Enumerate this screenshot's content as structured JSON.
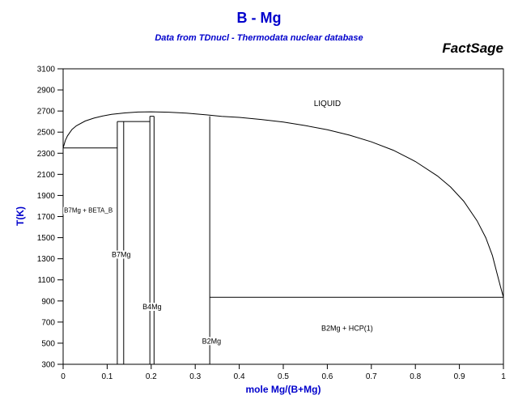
{
  "header": {
    "title": "B - Mg",
    "subtitle": "Data from TDnucl - Thermodata nuclear database",
    "brand": "FactSage"
  },
  "colors": {
    "title_blue": "#0000CC",
    "line_black": "#000000",
    "background": "#FFFFFF"
  },
  "chart_data": {
    "type": "line",
    "title": "B - Mg",
    "subtitle": "Data from TDnucl - Thermodata nuclear database",
    "xlabel": "mole Mg/(B+Mg)",
    "ylabel": "T(K)",
    "xlim": [
      0,
      1
    ],
    "ylim": [
      300,
      3100
    ],
    "grid": false,
    "x_ticks": [
      0,
      0.1,
      0.2,
      0.3,
      0.4,
      0.5,
      0.6,
      0.7,
      0.8,
      0.9,
      1
    ],
    "y_ticks": [
      300,
      500,
      700,
      900,
      1100,
      1300,
      1500,
      1700,
      1900,
      2100,
      2300,
      2500,
      2700,
      2900,
      3100
    ],
    "series": [
      {
        "name": "liquidus",
        "x": [
          0,
          0.005,
          0.01,
          0.02,
          0.03,
          0.05,
          0.07,
          0.09,
          0.11,
          0.14,
          0.17,
          0.2,
          0.24,
          0.28,
          0.32,
          0.36,
          0.4,
          0.45,
          0.5,
          0.55,
          0.6,
          0.65,
          0.7,
          0.75,
          0.8,
          0.85,
          0.88,
          0.91,
          0.94,
          0.96,
          0.975,
          0.985,
          0.993,
          1.0
        ],
        "y": [
          2350,
          2420,
          2465,
          2525,
          2560,
          2605,
          2633,
          2653,
          2668,
          2682,
          2690,
          2693,
          2689,
          2680,
          2666,
          2650,
          2640,
          2620,
          2596,
          2562,
          2522,
          2472,
          2408,
          2328,
          2222,
          2085,
          1980,
          1845,
          1660,
          1500,
          1330,
          1170,
          1040,
          935
        ]
      }
    ],
    "horizontal_lines": [
      {
        "T": 2350,
        "x1": 0,
        "x2": 0.123
      },
      {
        "T": 2600,
        "x1": 0.123,
        "x2": 0.197
      },
      {
        "T": 2650,
        "x1": 0.197,
        "x2": 0.2065
      },
      {
        "T": 935,
        "x1": 0.333,
        "x2": 1
      }
    ],
    "vertical_lines": [
      {
        "x": 0.123,
        "T1": 300,
        "T2": 2600
      },
      {
        "x": 0.1375,
        "T1": 300,
        "T2": 2600
      },
      {
        "x": 0.197,
        "T1": 300,
        "T2": 2650
      },
      {
        "x": 0.2065,
        "T1": 300,
        "T2": 2650
      },
      {
        "x": 0.333,
        "T1": 300,
        "T2": 2650
      }
    ],
    "region_labels": [
      {
        "text": "LIQUID",
        "x": 0.6,
        "T": 2770,
        "anchor": "middle",
        "size": 10
      },
      {
        "text": "B7Mg + BETA_B",
        "x": 0.002,
        "T": 1760,
        "anchor": "start",
        "size": 8
      },
      {
        "text": "B7Mg",
        "x": 0.132,
        "T": 1340,
        "anchor": "middle",
        "size": 9
      },
      {
        "text": "B4Mg",
        "x": 0.202,
        "T": 845,
        "anchor": "middle",
        "size": 9
      },
      {
        "text": "B2Mg",
        "x": 0.337,
        "T": 520,
        "anchor": "middle",
        "size": 9
      },
      {
        "text": "B2Mg + HCP(1)",
        "x": 0.645,
        "T": 640,
        "anchor": "middle",
        "size": 9
      }
    ]
  }
}
